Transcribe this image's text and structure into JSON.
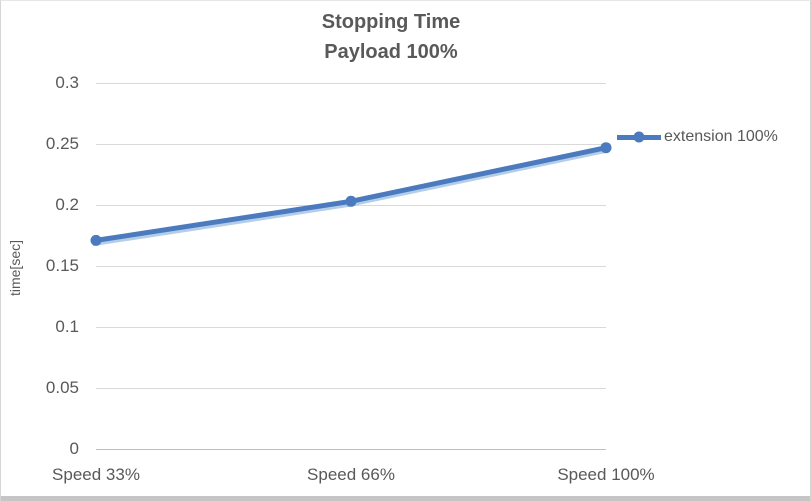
{
  "chart": {
    "title_line1": "Stopping Time",
    "title_line2": "Payload 100%",
    "ylabel": "time[sec]",
    "legend": {
      "label": "extension 100%"
    }
  },
  "chart_data": {
    "type": "line",
    "title": "Stopping Time Payload 100%",
    "categories": [
      "Speed 33%",
      "Speed 66%",
      "Speed 100%"
    ],
    "series": [
      {
        "name": "extension 100%",
        "values": [
          0.171,
          0.203,
          0.247
        ]
      }
    ],
    "xlabel": "",
    "ylabel": "time[sec]",
    "ylim": [
      0,
      0.3
    ],
    "ytick_step": 0.05,
    "yticks": [
      "0",
      "0.05",
      "0.1",
      "0.15",
      "0.2",
      "0.25",
      "0.3"
    ],
    "grid": true,
    "legend_position": "right",
    "marker": "circle",
    "colors": {
      "line": "#4b7bbe",
      "line_shadow": "#a7c4e4",
      "grid": "#d9d9d9",
      "axis": "#bfbfbf",
      "text": "#595959"
    }
  }
}
